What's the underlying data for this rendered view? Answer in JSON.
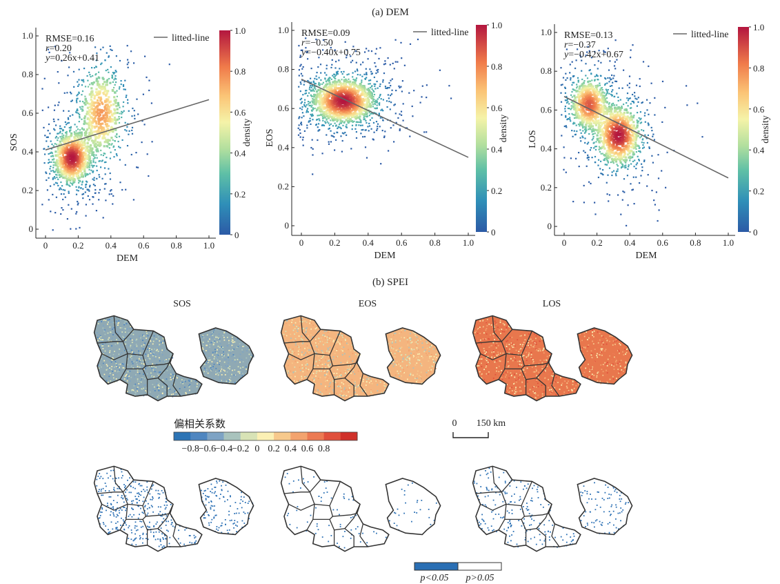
{
  "panel_a_label": "(a) DEM",
  "panel_b_label": "(b) SPEI",
  "chart_data": [
    {
      "type": "scatter",
      "xlabel": "DEM",
      "ylabel": "SOS",
      "xlim": [
        0,
        1
      ],
      "ylim": [
        0,
        1
      ],
      "xticks": [
        "0",
        "0.2",
        "0.4",
        "0.6",
        "0.8",
        "1.0"
      ],
      "yticks": [
        "0",
        "0.2",
        "0.4",
        "0.6",
        "0.8",
        "1.0"
      ],
      "stats": {
        "rmse": "RMSE=0.16",
        "r": "r=0.20",
        "eq": "y=0.26x+0.41"
      },
      "fit": {
        "slope": 0.26,
        "intercept": 0.41
      },
      "legend": {
        "entry": "litted-line",
        "placement": "top-right"
      },
      "colorbar": {
        "label": "density",
        "ticks": [
          "0",
          "0.2",
          "0.4",
          "0.6",
          "0.8",
          "1.0"
        ]
      },
      "density_centers": [
        {
          "x": 0.16,
          "y": 0.37,
          "weight": 0.6,
          "spread_x": 0.06,
          "spread_y": 0.07
        },
        {
          "x": 0.34,
          "y": 0.6,
          "weight": 0.4,
          "spread_x": 0.07,
          "spread_y": 0.12
        }
      ]
    },
    {
      "type": "scatter",
      "xlabel": "DEM",
      "ylabel": "EOS",
      "xlim": [
        0,
        1
      ],
      "ylim": [
        0,
        1
      ],
      "xticks": [
        "0",
        "0.2",
        "0.4",
        "0.6",
        "0.8",
        "1.0"
      ],
      "yticks": [
        "0",
        "0.2",
        "0.4",
        "0.6",
        "0.8",
        "1.0"
      ],
      "stats": {
        "rmse": "RMSE=0.09",
        "r": "r=−0.50",
        "eq": "y=−0.40x+0.75"
      },
      "fit": {
        "slope": -0.4,
        "intercept": 0.75
      },
      "legend": {
        "entry": "litted-line",
        "placement": "top-right"
      },
      "colorbar": {
        "label": "density",
        "ticks": [
          "0",
          "0.2",
          "0.4",
          "0.6",
          "0.8",
          "1.0"
        ]
      },
      "density_centers": [
        {
          "x": 0.25,
          "y": 0.64,
          "weight": 1.0,
          "spread_x": 0.1,
          "spread_y": 0.06
        }
      ]
    },
    {
      "type": "scatter",
      "xlabel": "DEM",
      "ylabel": "LOS",
      "xlim": [
        0,
        1
      ],
      "ylim": [
        0,
        1
      ],
      "xticks": [
        "0",
        "0.2",
        "0.4",
        "0.6",
        "0.8",
        "1.0"
      ],
      "yticks": [
        "0",
        "0.2",
        "0.4",
        "0.6",
        "0.8",
        "1.0"
      ],
      "stats": {
        "rmse": "RMSE=0.13",
        "r": "r=−0.37",
        "eq": "y=−0.42x+0.67"
      },
      "fit": {
        "slope": -0.42,
        "intercept": 0.67
      },
      "legend": {
        "entry": "litted-line",
        "placement": "top-right"
      },
      "colorbar": {
        "label": "density",
        "ticks": [
          "0",
          "0.2",
          "0.4",
          "0.6",
          "0.8",
          "1.0"
        ]
      },
      "density_centers": [
        {
          "x": 0.15,
          "y": 0.63,
          "weight": 0.45,
          "spread_x": 0.06,
          "spread_y": 0.07
        },
        {
          "x": 0.33,
          "y": 0.47,
          "weight": 0.55,
          "spread_x": 0.07,
          "spread_y": 0.08
        }
      ]
    }
  ],
  "maps": {
    "titles": [
      "SOS",
      "EOS",
      "LOS"
    ],
    "partial_corr_tone": [
      "#8fa9b4",
      "#f4b57f",
      "#e8774d"
    ],
    "sig_density": [
      0.55,
      0.12,
      0.35
    ]
  },
  "partial_corr_legend": {
    "title": "偏相关系数",
    "ticks": [
      "−0.8",
      "−0.6",
      "−0.4",
      "−0.2",
      "0",
      "0.2",
      "0.4",
      "0.6",
      "0.8"
    ],
    "colors": [
      "#2c74b5",
      "#4f86c0",
      "#7ea3c4",
      "#a9c3bd",
      "#d8e3b6",
      "#fbf0b4",
      "#f7c98c",
      "#f3a36e",
      "#ec7a53",
      "#e0503c",
      "#d0302a"
    ]
  },
  "scale_bar": {
    "zero": "0",
    "length_label": "150 km"
  },
  "sig_legend": {
    "sig_label": "p<0.05",
    "nonsig_label": "p>0.05",
    "sig_color": "#2a6fb4",
    "nonsig_color": "#ffffff"
  }
}
